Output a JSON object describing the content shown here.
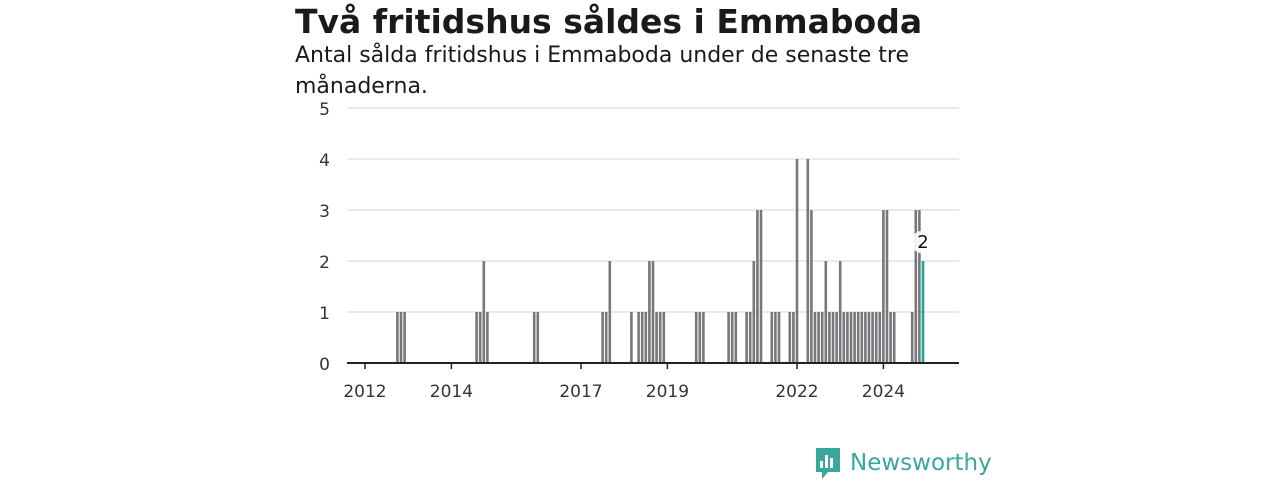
{
  "header": {
    "title": "Två fritidshus såldes i Emmaboda",
    "subtitle": "Antal sålda fritidshus i Emmaboda under de senaste tre månaderna."
  },
  "brand": {
    "name": "Newsworthy",
    "icon": "newsworthy-logo-icon",
    "color": "#3aa79b"
  },
  "colors": {
    "bar": "#77777c",
    "highlight": "#1aa39a",
    "grid": "#dddddd",
    "axis": "#222222",
    "text": "#333333"
  },
  "chart_data": {
    "type": "bar",
    "title": "Två fritidshus såldes i Emmaboda",
    "subtitle": "Antal sålda fritidshus i Emmaboda under de senaste tre månaderna.",
    "xlabel": "",
    "ylabel": "",
    "ylim": [
      0,
      5
    ],
    "yticks": [
      0,
      1,
      2,
      3,
      4,
      5
    ],
    "grid": true,
    "x_tick_labels": [
      "2012",
      "2014",
      "2017",
      "2019",
      "2022",
      "2024"
    ],
    "x_tick_months": [
      "2012-01",
      "2014-01",
      "2017-01",
      "2019-01",
      "2022-01",
      "2024-01"
    ],
    "x_range": [
      "2011-08",
      "2025-10"
    ],
    "months": [
      "2012-10",
      "2012-11",
      "2012-12",
      "2014-08",
      "2014-09",
      "2014-10",
      "2014-11",
      "2015-12",
      "2016-01",
      "2017-07",
      "2017-08",
      "2017-09",
      "2018-03",
      "2018-05",
      "2018-06",
      "2018-07",
      "2018-08",
      "2018-09",
      "2018-10",
      "2018-11",
      "2018-12",
      "2019-09",
      "2019-10",
      "2019-11",
      "2020-06",
      "2020-07",
      "2020-08",
      "2020-11",
      "2020-12",
      "2021-01",
      "2021-02",
      "2021-03",
      "2021-06",
      "2021-07",
      "2021-08",
      "2021-11",
      "2021-12",
      "2022-01",
      "2022-04",
      "2022-05",
      "2022-06",
      "2022-07",
      "2022-08",
      "2022-09",
      "2022-10",
      "2022-11",
      "2022-12",
      "2023-01",
      "2023-02",
      "2023-03",
      "2023-04",
      "2023-05",
      "2023-06",
      "2023-07",
      "2023-08",
      "2023-09",
      "2023-10",
      "2023-11",
      "2023-12",
      "2024-01",
      "2024-02",
      "2024-03",
      "2024-04",
      "2024-09",
      "2024-10",
      "2024-11",
      "2024-12"
    ],
    "values": [
      1,
      1,
      1,
      1,
      1,
      2,
      1,
      1,
      1,
      1,
      1,
      2,
      1,
      1,
      1,
      1,
      2,
      2,
      1,
      1,
      1,
      1,
      1,
      1,
      1,
      1,
      1,
      1,
      1,
      2,
      3,
      3,
      1,
      1,
      1,
      1,
      1,
      4,
      4,
      3,
      1,
      1,
      1,
      2,
      1,
      1,
      1,
      2,
      1,
      1,
      1,
      1,
      1,
      1,
      1,
      1,
      1,
      1,
      1,
      3,
      3,
      1,
      1,
      1,
      3,
      3,
      2
    ],
    "highlight": {
      "month": "2024-12",
      "value": 2,
      "label": "2"
    }
  }
}
